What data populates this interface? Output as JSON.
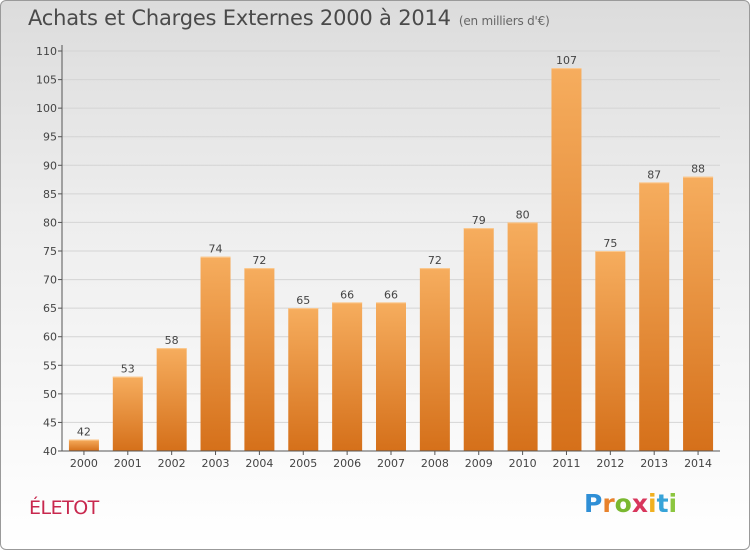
{
  "title": "Achats et Charges Externes 2000 à 2014",
  "subtitle": "(en milliers d'€)",
  "commune": "ÉLETOT",
  "logo": {
    "letters": [
      "P",
      "r",
      "o",
      "x",
      "i",
      "t",
      "i"
    ],
    "colors": [
      "#2f8fd6",
      "#e8822c",
      "#7ab830",
      "#d8365c",
      "#f0b020",
      "#37a3d8",
      "#8cc63f"
    ]
  },
  "colors": {
    "bar": "#ee8a2e",
    "bar_light": "#f6ad5e",
    "bar_dark": "#d06c14",
    "title": "#4a4a4a",
    "commune": "#c8284e"
  },
  "chart_data": {
    "type": "bar",
    "categories": [
      "2000",
      "2001",
      "2002",
      "2003",
      "2004",
      "2005",
      "2006",
      "2007",
      "2008",
      "2009",
      "2010",
      "2011",
      "2012",
      "2013",
      "2014"
    ],
    "values": [
      42,
      53,
      58,
      74,
      72,
      65,
      66,
      66,
      72,
      79,
      80,
      107,
      75,
      87,
      88
    ],
    "ylim": [
      40,
      110
    ],
    "yticks": [
      40,
      45,
      50,
      55,
      60,
      65,
      70,
      75,
      80,
      85,
      90,
      95,
      100,
      105,
      110
    ],
    "grid": true,
    "data_labels": true
  }
}
